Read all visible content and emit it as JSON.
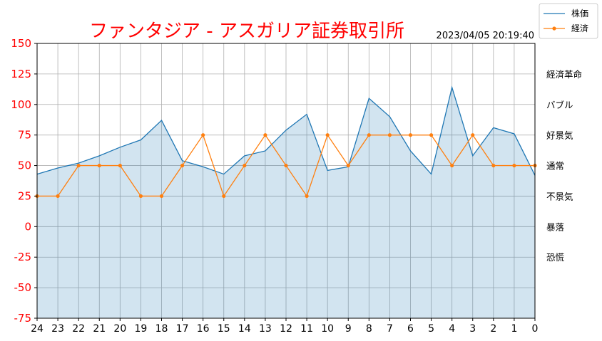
{
  "chart_data": {
    "type": "line",
    "title": "ファンタジア - アスガリア証券取引所",
    "timestamp": "2023/04/05 20:19:40",
    "x": [
      24,
      23,
      22,
      21,
      20,
      19,
      18,
      17,
      16,
      15,
      14,
      13,
      12,
      11,
      10,
      9,
      8,
      7,
      6,
      5,
      4,
      3,
      2,
      1,
      0
    ],
    "xlim": [
      24,
      0
    ],
    "ylim": [
      -75,
      150
    ],
    "yticks": [
      150,
      125,
      100,
      75,
      50,
      25,
      0,
      -25,
      -50,
      -75
    ],
    "grid": true,
    "legend_position": "top-right",
    "series": [
      {
        "name": "株価",
        "color": "#1f77b4",
        "fill": true,
        "marker": "none",
        "values": [
          43,
          48,
          52,
          58,
          65,
          71,
          87,
          54,
          49,
          43,
          58,
          62,
          79,
          92,
          46,
          49,
          105,
          90,
          62,
          43,
          114,
          58,
          81,
          76,
          42
        ]
      },
      {
        "name": "経済",
        "color": "#ff7f0e",
        "fill": false,
        "marker": "circle",
        "values": [
          25,
          25,
          50,
          50,
          50,
          25,
          25,
          50,
          75,
          25,
          50,
          75,
          50,
          25,
          75,
          50,
          75,
          75,
          75,
          75,
          50,
          75,
          50,
          50,
          50
        ]
      }
    ],
    "state_labels": [
      {
        "label": "経済革命",
        "value": 125
      },
      {
        "label": "バブル",
        "value": 100
      },
      {
        "label": "好景気",
        "value": 75
      },
      {
        "label": "通常",
        "value": 50
      },
      {
        "label": "不景気",
        "value": 25
      },
      {
        "label": "暴落",
        "value": 0
      },
      {
        "label": "恐慌",
        "value": -25
      }
    ],
    "colors": {
      "title": "#ff0000",
      "ytick": "#ff0000",
      "grid": "#b0b0b0",
      "fill": "#1f77b4"
    }
  }
}
